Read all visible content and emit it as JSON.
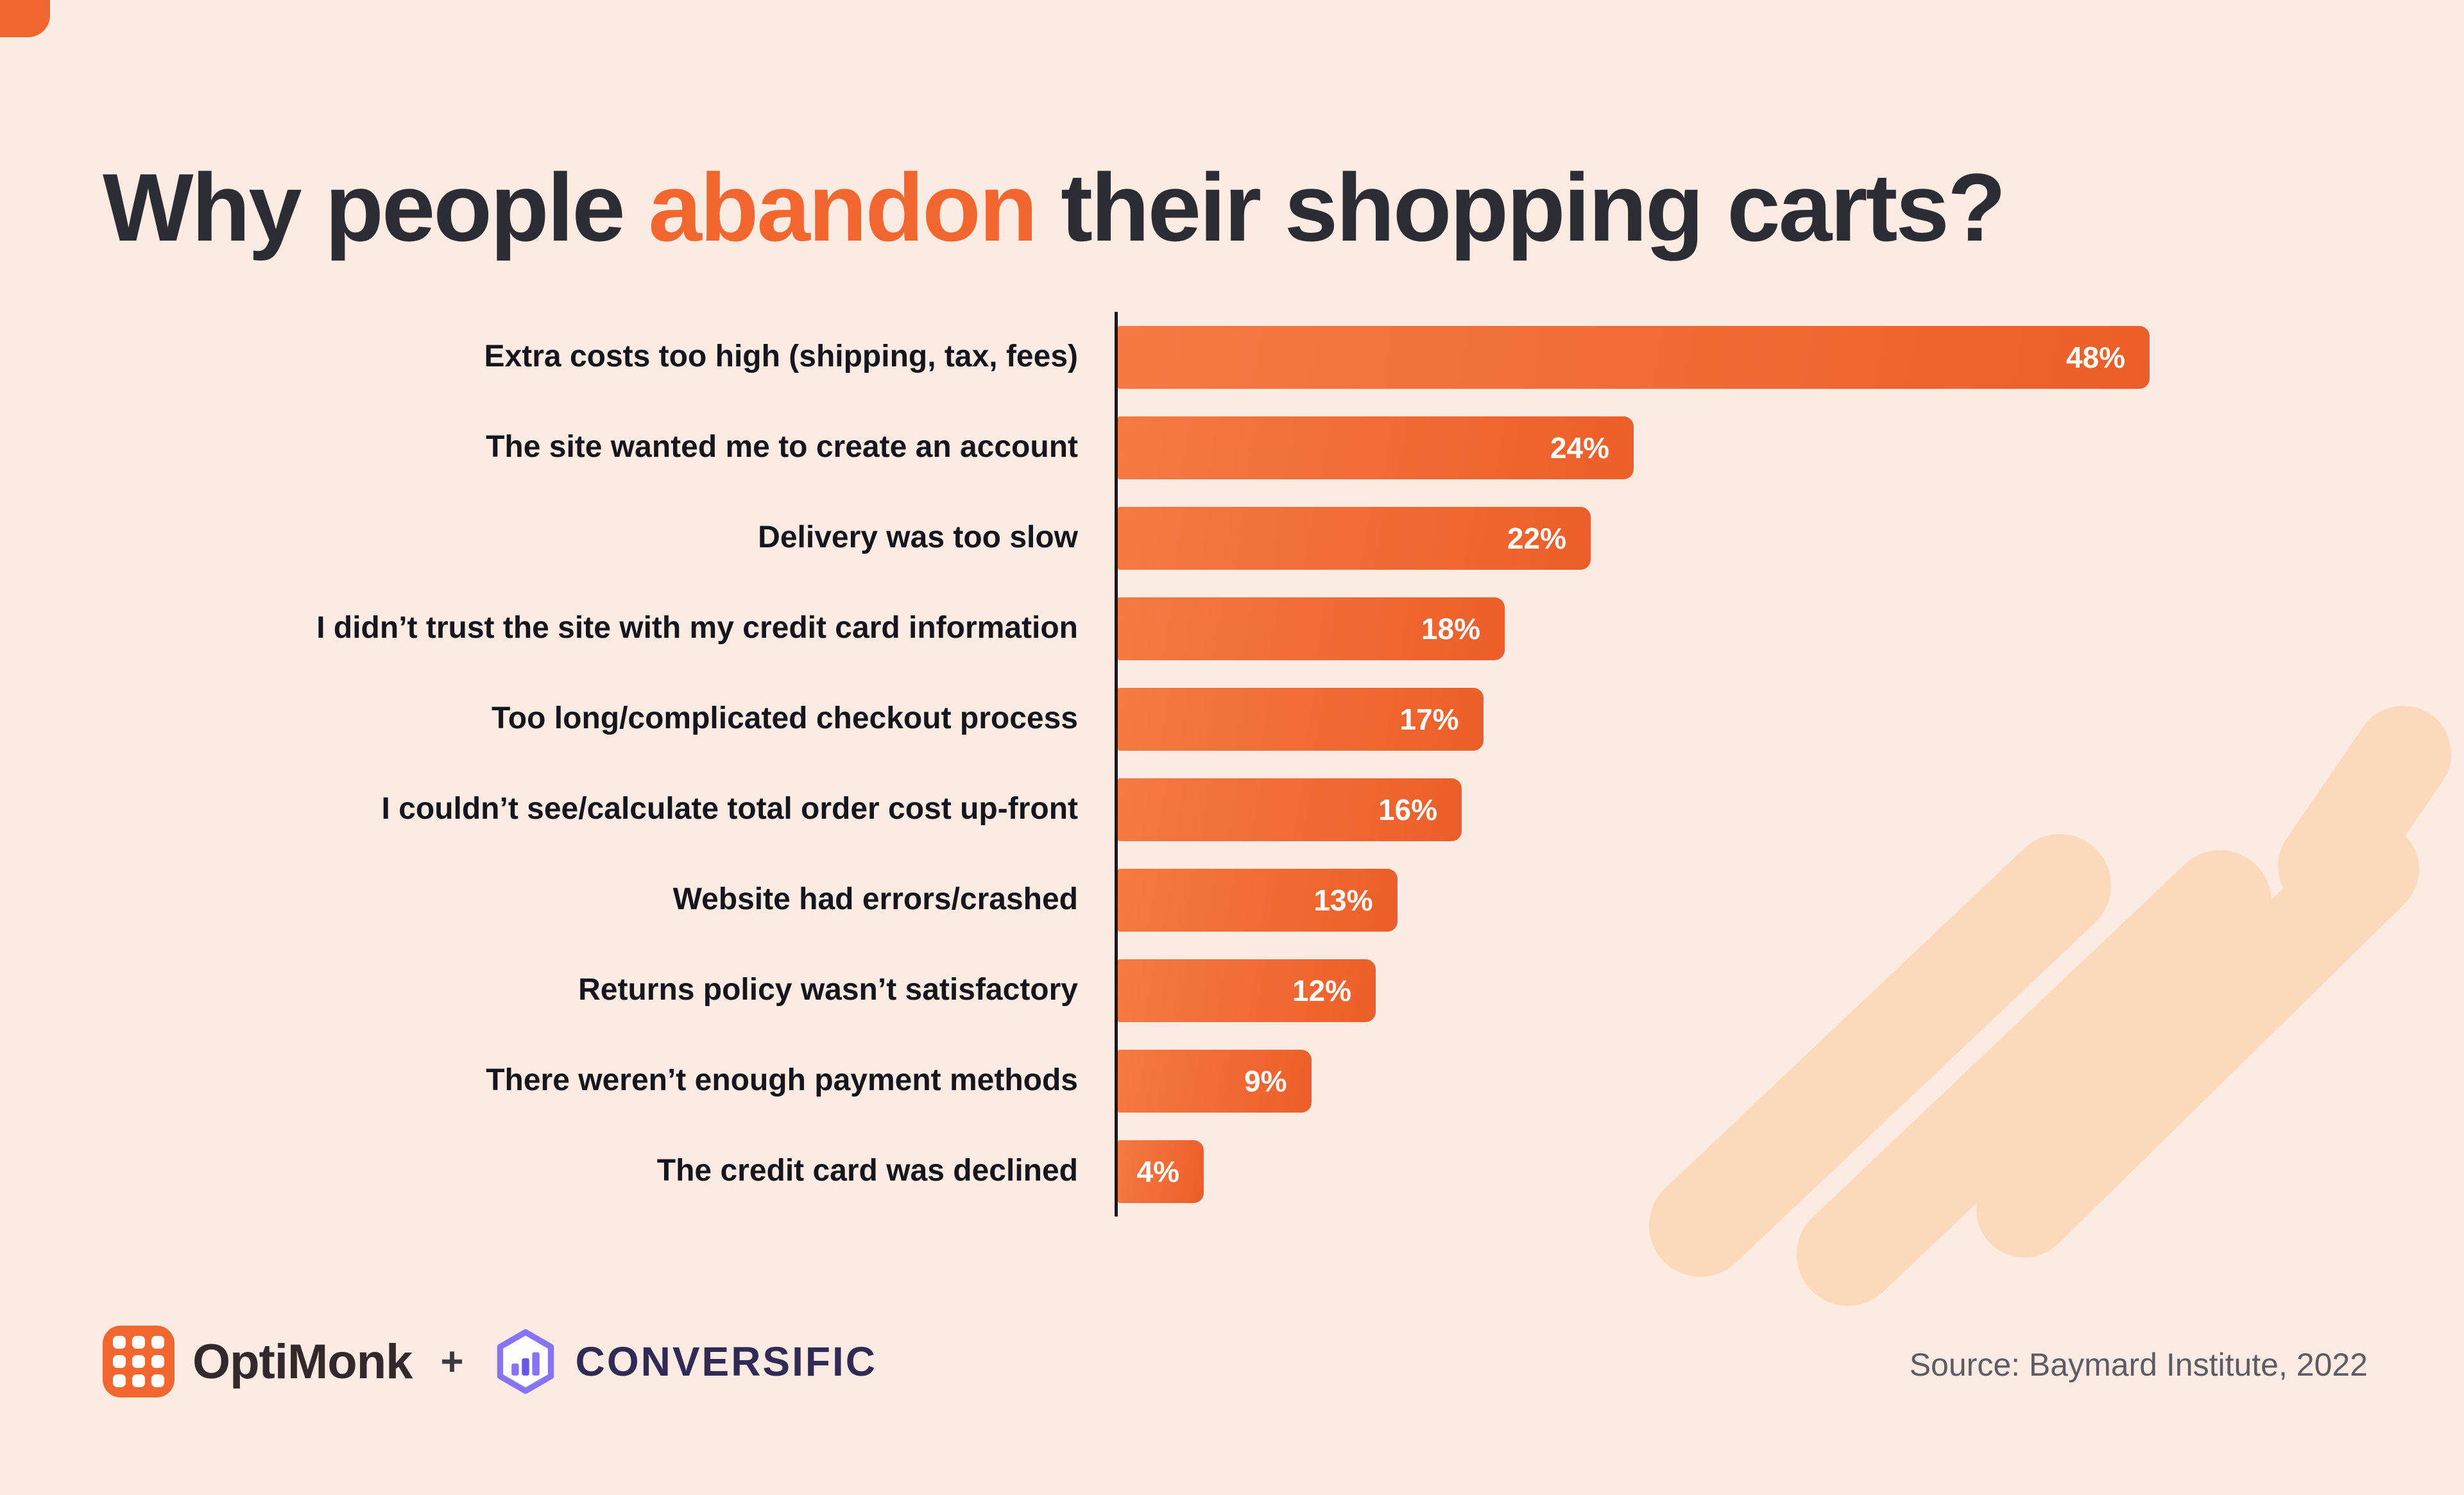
{
  "title": {
    "pre": "Why people ",
    "highlight": "abandon",
    "post": " their shopping carts?"
  },
  "chart_data": {
    "type": "bar",
    "orientation": "horizontal",
    "title": "Why people abandon their shopping carts?",
    "categories": [
      "Extra costs too high (shipping, tax, fees)",
      "The site wanted me to create an account",
      "Delivery was too slow",
      "I didn’t trust the site with my credit card information",
      "Too long/complicated checkout process",
      "I couldn’t see/calculate total order cost up-front",
      "Website had errors/crashed",
      "Returns policy wasn’t satisfactory",
      "There weren’t enough payment methods",
      "The credit card was declined"
    ],
    "values": [
      48,
      24,
      22,
      18,
      17,
      16,
      13,
      12,
      9,
      4
    ],
    "value_labels": [
      "48%",
      "24%",
      "22%",
      "18%",
      "17%",
      "16%",
      "13%",
      "12%",
      "9%",
      "4%"
    ],
    "xlim": [
      0,
      48
    ],
    "grid": false,
    "legend": false,
    "bar_color_start": "#f67a43",
    "bar_color_end": "#ec5e29",
    "value_label_color": "#ffffff"
  },
  "footer": {
    "optimonk": "OptiMonk",
    "plus": "+",
    "conversific": "CONVERSIFIC",
    "source": "Source: Baymard Institute, 2022"
  },
  "colors": {
    "background": "#fcebe2",
    "title_text": "#2c2c35",
    "title_highlight": "#f2672f",
    "accent_orange": "#f2672f",
    "axis_line": "#17171d",
    "label_text": "#15151d",
    "source_text": "#5c5c66",
    "brush_decoration": "#fcd9bb",
    "conversific_purple": "#8674f4",
    "conversific_text": "#2f2b55"
  }
}
